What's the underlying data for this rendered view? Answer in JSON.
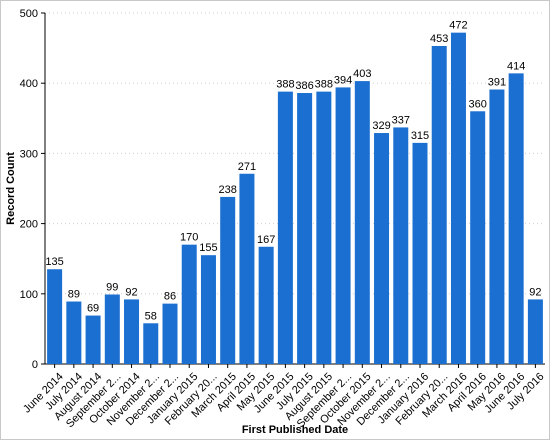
{
  "chart_data": {
    "type": "bar",
    "xlabel": "First Published Date",
    "ylabel": "Record Count",
    "ylim": [
      0,
      500
    ],
    "yticks": [
      0,
      100,
      200,
      300,
      400,
      500
    ],
    "grid": "horizontal dotted",
    "bar_color": "#1a6fd1",
    "categories": [
      "June 2014",
      "July 2014",
      "August 2014",
      "September 2...",
      "October 2014",
      "November 2...",
      "December 2...",
      "January 2015",
      "February 20...",
      "March 2015",
      "April 2015",
      "May 2015",
      "June 2015",
      "July 2015",
      "August 2015",
      "September 2...",
      "October 2015",
      "November 2...",
      "December 2...",
      "January 2016",
      "February 20...",
      "March 2016",
      "April 2016",
      "May 2016",
      "June 2016",
      "July 2016"
    ],
    "values": [
      135,
      89,
      69,
      99,
      92,
      58,
      86,
      170,
      155,
      238,
      271,
      167,
      388,
      386,
      388,
      394,
      403,
      329,
      337,
      315,
      453,
      472,
      360,
      391,
      414,
      92
    ]
  }
}
